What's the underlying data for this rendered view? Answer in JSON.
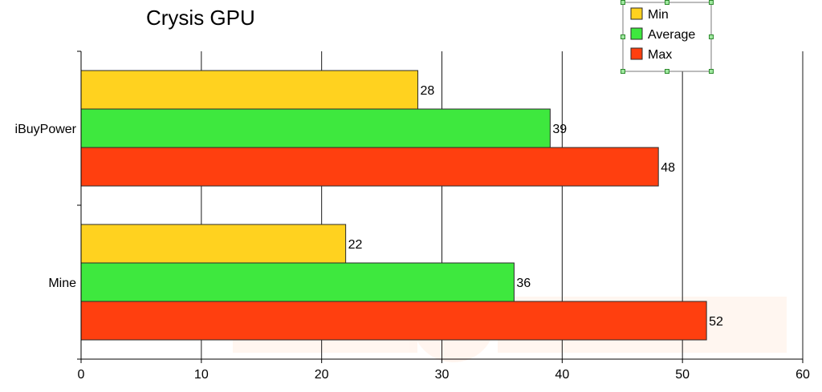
{
  "chart_data": {
    "type": "bar",
    "orientation": "horizontal",
    "title": "Crysis GPU",
    "xlabel": "",
    "ylabel": "",
    "categories": [
      "iBuyPower",
      "Mine"
    ],
    "series": [
      {
        "name": "Min",
        "values": [
          28,
          22
        ],
        "color": "#ffd21f"
      },
      {
        "name": "Average",
        "values": [
          39,
          36
        ],
        "color": "#3ee83e"
      },
      {
        "name": "Max",
        "values": [
          48,
          52
        ],
        "color": "#ff3f0f"
      }
    ],
    "xlim": [
      0,
      60
    ],
    "xticks": [
      0,
      10,
      20,
      30,
      40,
      50,
      60
    ],
    "grid": true,
    "legend_position": "top-right"
  }
}
